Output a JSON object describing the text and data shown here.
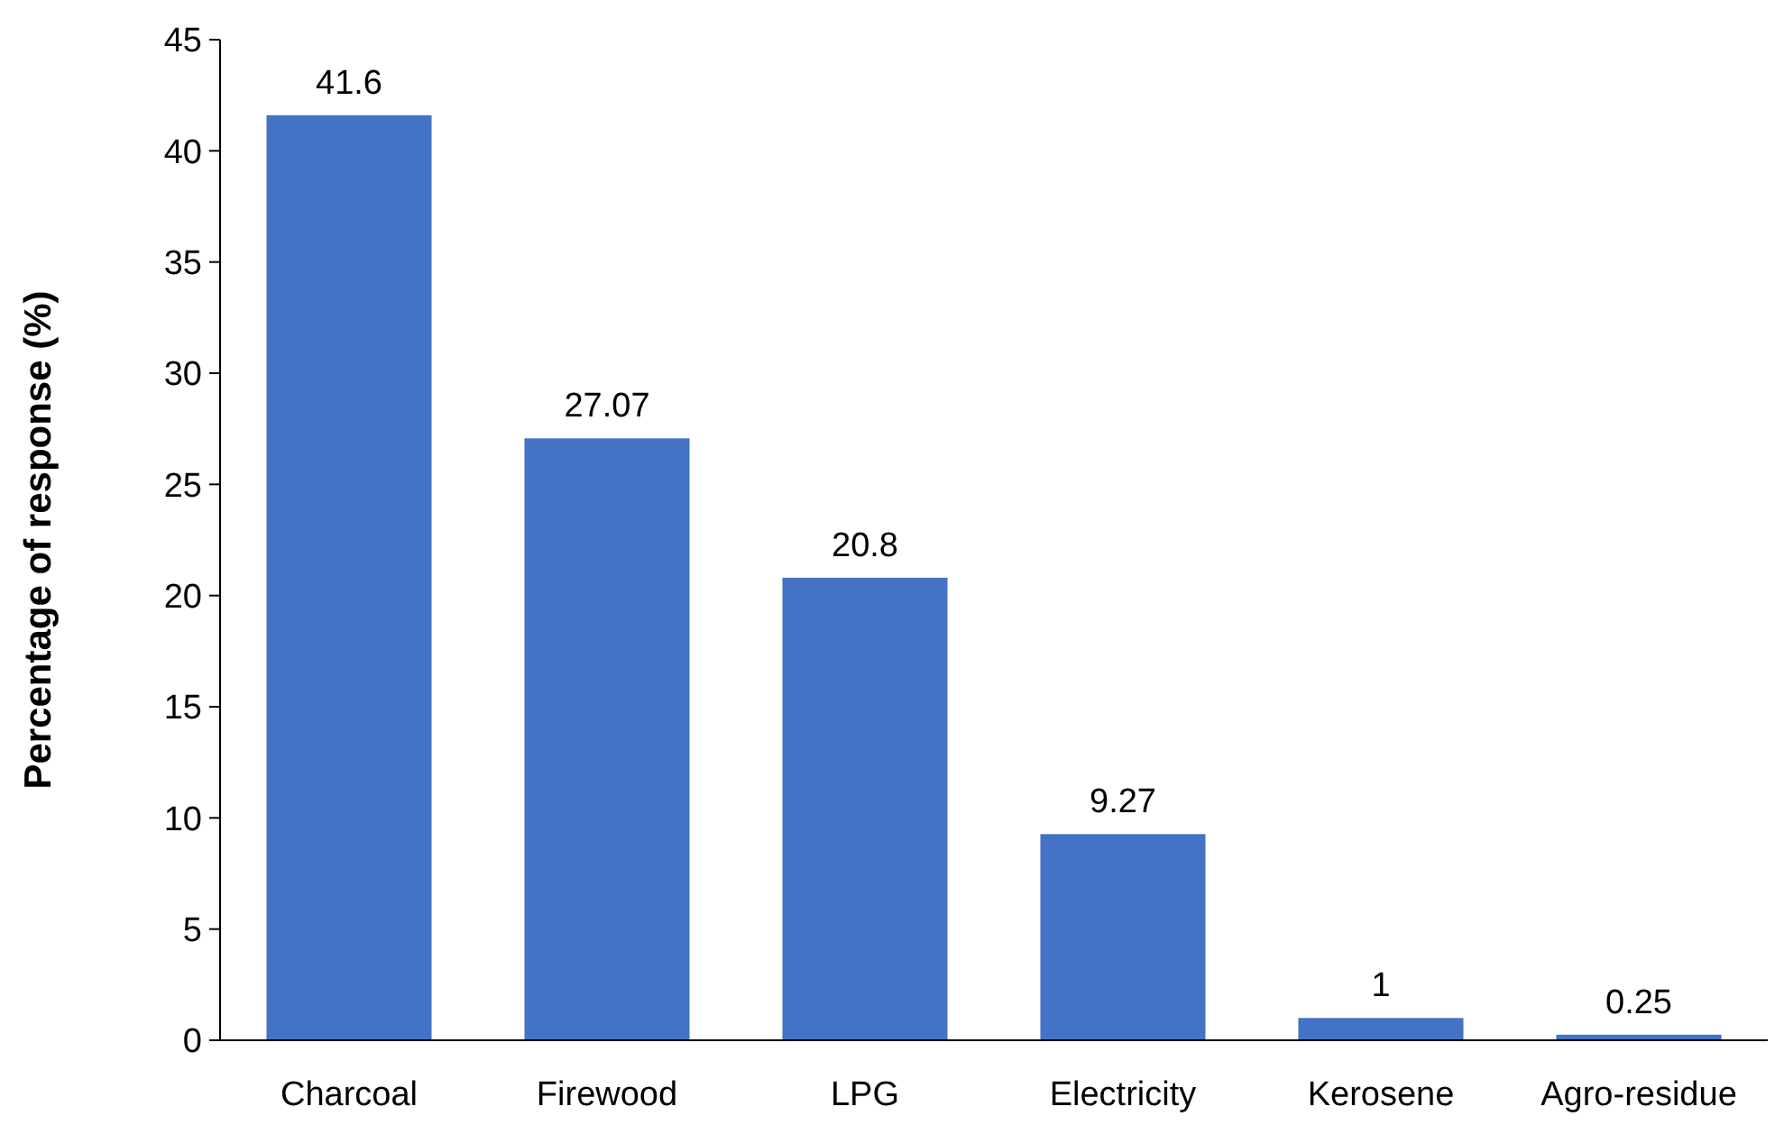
{
  "chart_data": {
    "type": "bar",
    "ylabel": "Percentage of response (%)",
    "categories": [
      "Charcoal",
      "Firewood",
      "LPG",
      "Electricity",
      "Kerosene",
      "Agro-residue"
    ],
    "values": [
      41.6,
      27.07,
      20.8,
      9.27,
      1,
      0.25
    ],
    "color": "#4472c4",
    "ylim": [
      0,
      45
    ],
    "yticks": [
      0,
      5,
      10,
      15,
      20,
      25,
      30,
      35,
      40,
      45
    ],
    "data_labels": true
  }
}
